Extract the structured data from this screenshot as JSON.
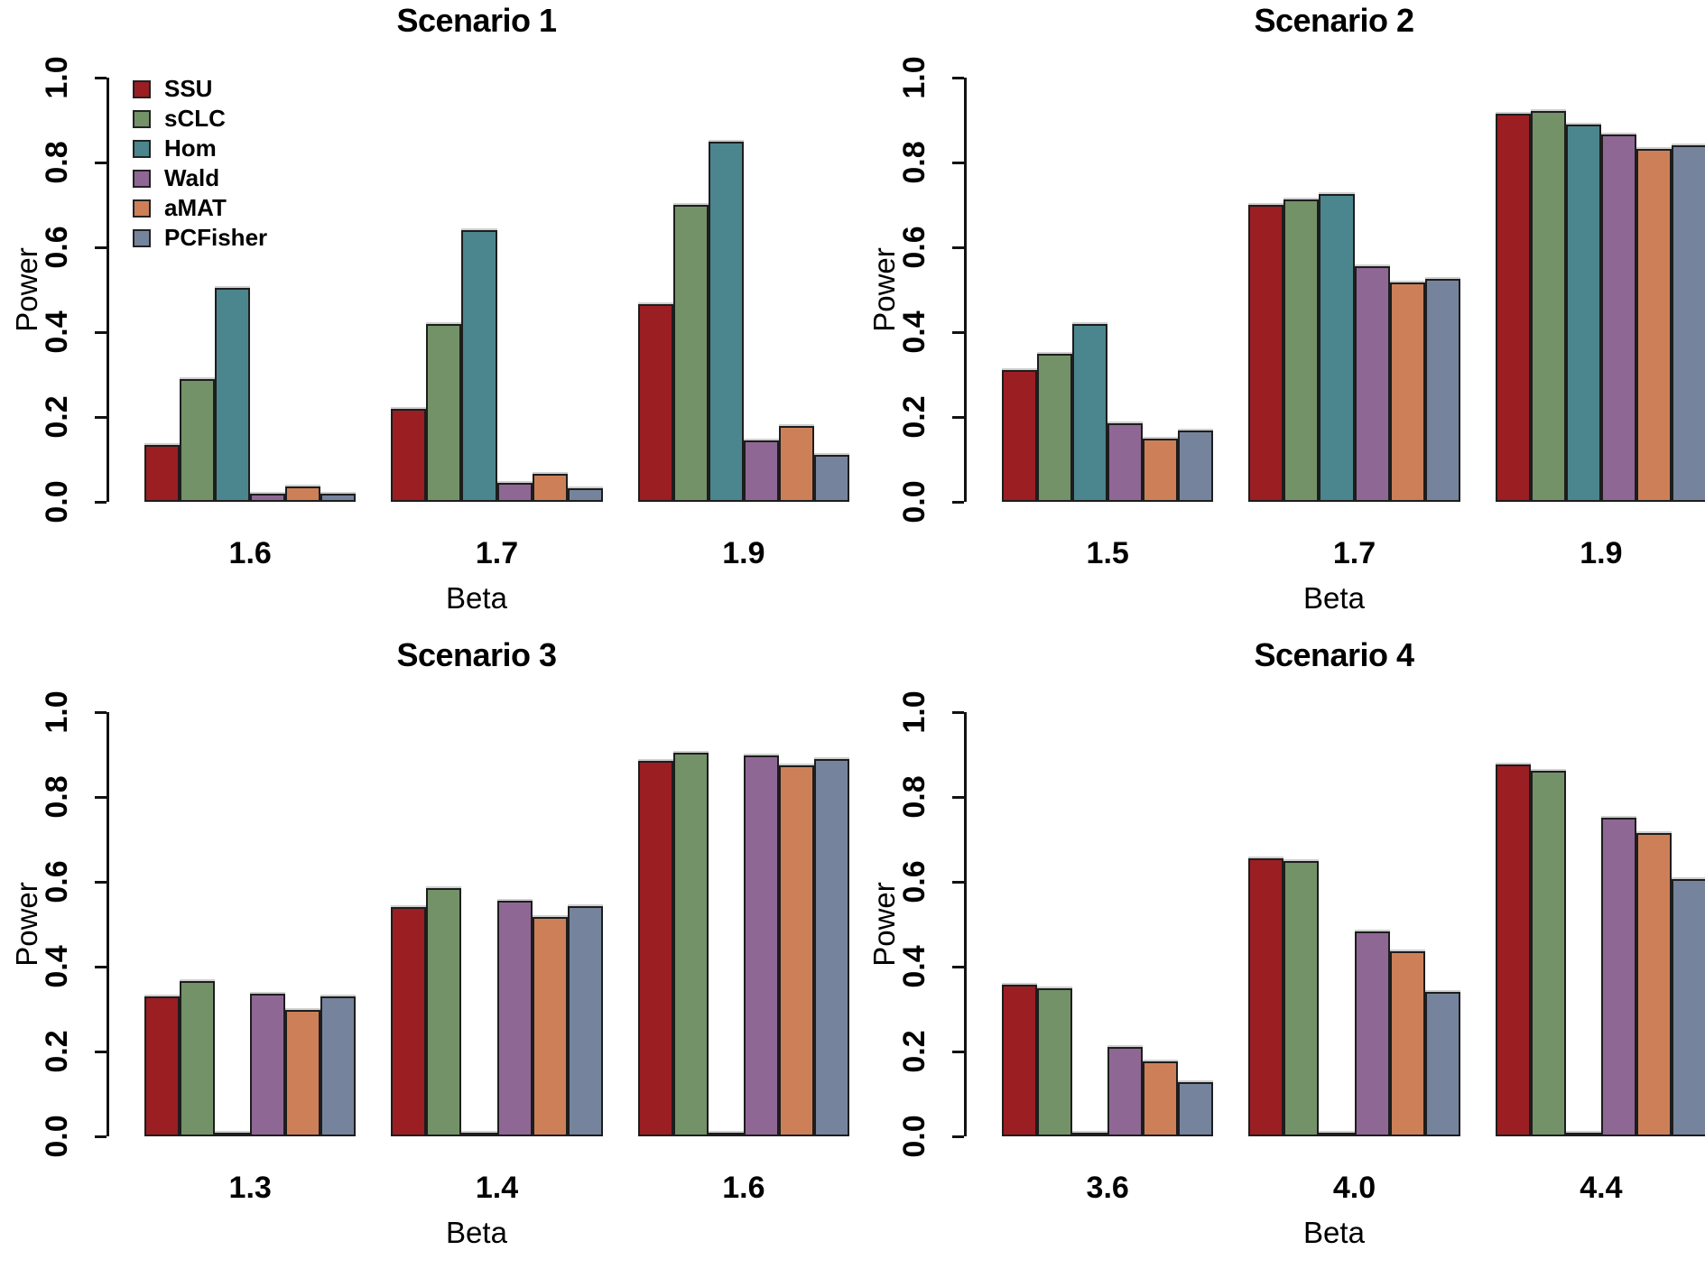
{
  "figure": {
    "background": "#ffffff",
    "text_color": "#000000",
    "axis_color": "#111111",
    "bar_border_color": "#1d1d1d"
  },
  "legend": {
    "position": "top-left",
    "shown_on_panel": "Scenario 1",
    "items": [
      {
        "label": "SSU",
        "color": "#9a1e22"
      },
      {
        "label": "sCLC",
        "color": "#739267"
      },
      {
        "label": "Hom",
        "color": "#4b858d"
      },
      {
        "label": "Wald",
        "color": "#8f6795"
      },
      {
        "label": "aMAT",
        "color": "#cd8058"
      },
      {
        "label": "PCFisher",
        "color": "#75849c"
      }
    ]
  },
  "chart_data": [
    {
      "type": "bar",
      "title": "Scenario 1",
      "xlabel": "Beta",
      "ylabel": "Power",
      "ylim": [
        0,
        1
      ],
      "yticks": [
        "0.0",
        "0.2",
        "0.4",
        "0.6",
        "0.8",
        "1.0"
      ],
      "grid": false,
      "legend_visible": true,
      "legend_position": "top-left",
      "categories": [
        "1.6",
        "1.7",
        "1.9"
      ],
      "series": [
        {
          "name": "SSU",
          "values": [
            0.135,
            0.22,
            0.465
          ]
        },
        {
          "name": "sCLC",
          "values": [
            0.29,
            0.42,
            0.7
          ]
        },
        {
          "name": "Hom",
          "values": [
            0.505,
            0.64,
            0.85
          ]
        },
        {
          "name": "Wald",
          "values": [
            0.02,
            0.045,
            0.145
          ]
        },
        {
          "name": "aMAT",
          "values": [
            0.036,
            0.065,
            0.178
          ]
        },
        {
          "name": "PCFisher",
          "values": [
            0.02,
            0.032,
            0.11
          ]
        }
      ]
    },
    {
      "type": "bar",
      "title": "Scenario 2",
      "xlabel": "Beta",
      "ylabel": "Power",
      "ylim": [
        0,
        1
      ],
      "yticks": [
        "0.0",
        "0.2",
        "0.4",
        "0.6",
        "0.8",
        "1.0"
      ],
      "grid": false,
      "legend_visible": false,
      "legend_position": null,
      "categories": [
        "1.5",
        "1.7",
        "1.9"
      ],
      "series": [
        {
          "name": "SSU",
          "values": [
            0.31,
            0.7,
            0.915
          ]
        },
        {
          "name": "sCLC",
          "values": [
            0.35,
            0.712,
            0.922
          ]
        },
        {
          "name": "Hom",
          "values": [
            0.42,
            0.725,
            0.89
          ]
        },
        {
          "name": "Wald",
          "values": [
            0.185,
            0.555,
            0.865
          ]
        },
        {
          "name": "aMAT",
          "values": [
            0.148,
            0.517,
            0.832
          ]
        },
        {
          "name": "PCFisher",
          "values": [
            0.168,
            0.525,
            0.84
          ]
        }
      ]
    },
    {
      "type": "bar",
      "title": "Scenario 3",
      "xlabel": "Beta",
      "ylabel": "Power",
      "ylim": [
        0,
        1
      ],
      "yticks": [
        "0.0",
        "0.2",
        "0.4",
        "0.6",
        "0.8",
        "1.0"
      ],
      "grid": false,
      "legend_visible": false,
      "legend_position": null,
      "categories": [
        "1.3",
        "1.4",
        "1.6"
      ],
      "series": [
        {
          "name": "SSU",
          "values": [
            0.33,
            0.54,
            0.885
          ]
        },
        {
          "name": "sCLC",
          "values": [
            0.365,
            0.585,
            0.905
          ]
        },
        {
          "name": "Hom",
          "values": [
            0.002,
            0.002,
            0.004
          ]
        },
        {
          "name": "Wald",
          "values": [
            0.337,
            0.555,
            0.897
          ]
        },
        {
          "name": "aMAT",
          "values": [
            0.297,
            0.517,
            0.875
          ]
        },
        {
          "name": "PCFisher",
          "values": [
            0.33,
            0.543,
            0.89
          ]
        }
      ]
    },
    {
      "type": "bar",
      "title": "Scenario 4",
      "xlabel": "Beta",
      "ylabel": "Power",
      "ylim": [
        0,
        1
      ],
      "yticks": [
        "0.0",
        "0.2",
        "0.4",
        "0.6",
        "0.8",
        "1.0"
      ],
      "grid": false,
      "legend_visible": false,
      "legend_position": null,
      "categories": [
        "3.6",
        "4.0",
        "4.4"
      ],
      "series": [
        {
          "name": "SSU",
          "values": [
            0.357,
            0.655,
            0.877
          ]
        },
        {
          "name": "sCLC",
          "values": [
            0.35,
            0.65,
            0.862
          ]
        },
        {
          "name": "Hom",
          "values": [
            0.003,
            0.004,
            0.008
          ]
        },
        {
          "name": "Wald",
          "values": [
            0.21,
            0.483,
            0.752
          ]
        },
        {
          "name": "aMAT",
          "values": [
            0.177,
            0.437,
            0.715
          ]
        },
        {
          "name": "PCFisher",
          "values": [
            0.127,
            0.34,
            0.607
          ]
        }
      ]
    }
  ]
}
